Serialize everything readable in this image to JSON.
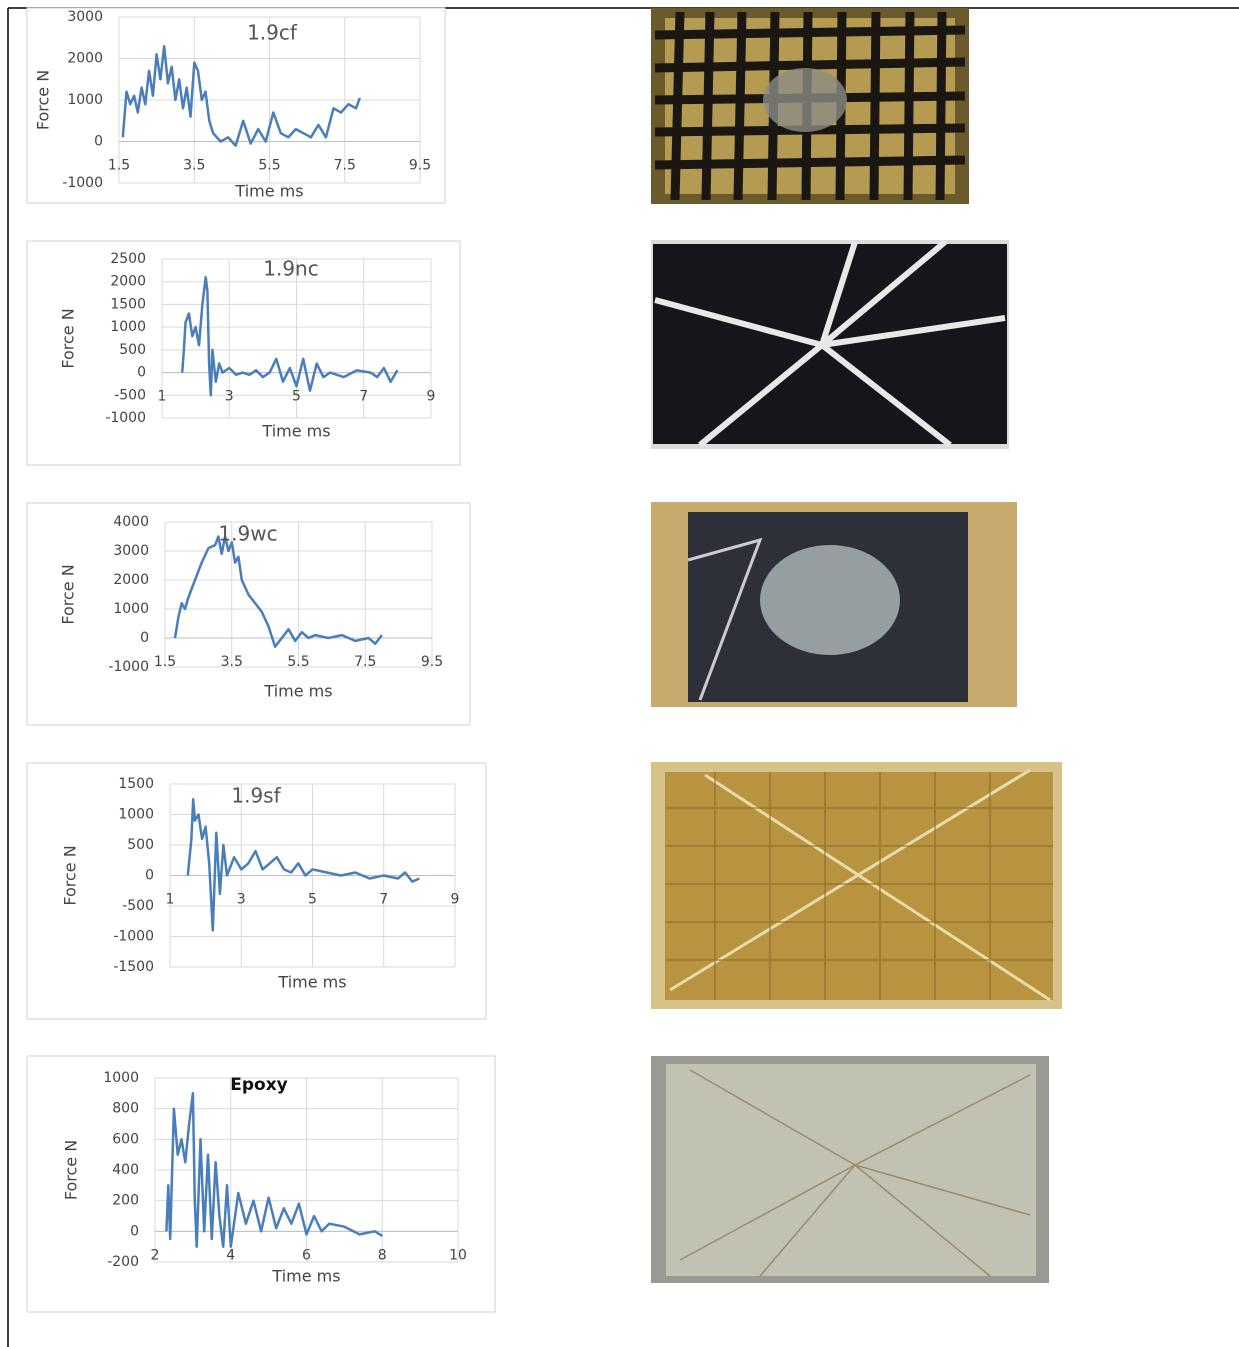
{
  "chart_data": [
    {
      "type": "line",
      "title": "1.9cf",
      "x_label": "Time ms",
      "y_label": "Force N",
      "color": "#4a7ebb",
      "x": [
        1.6,
        1.7,
        1.8,
        1.9,
        2.0,
        2.1,
        2.2,
        2.3,
        2.4,
        2.5,
        2.6,
        2.7,
        2.8,
        2.9,
        3.0,
        3.1,
        3.2,
        3.3,
        3.4,
        3.5,
        3.6,
        3.7,
        3.8,
        3.9,
        4.0,
        4.2,
        4.4,
        4.6,
        4.8,
        5.0,
        5.2,
        5.4,
        5.6,
        5.8,
        6.0,
        6.2,
        6.4,
        6.6,
        6.8,
        7.0,
        7.2,
        7.4,
        7.6,
        7.8,
        7.9
      ],
      "values": [
        100,
        1200,
        900,
        1100,
        700,
        1300,
        900,
        1700,
        1100,
        2100,
        1500,
        2300,
        1400,
        1800,
        1000,
        1500,
        800,
        1300,
        600,
        1900,
        1700,
        1000,
        1200,
        500,
        200,
        0,
        100,
        -100,
        500,
        -50,
        300,
        0,
        700,
        200,
        100,
        300,
        200,
        100,
        400,
        100,
        800,
        700,
        900,
        800,
        1050
      ],
      "xlim": [
        1.5,
        9.5
      ],
      "xticks": [
        1.5,
        3.5,
        5.5,
        7.5,
        9.5
      ],
      "ylim": [
        -1000,
        3000
      ],
      "yticks": [
        -1000,
        0,
        1000,
        2000,
        3000
      ],
      "grid": true
    },
    {
      "type": "line",
      "title": "1.9nc",
      "x_label": "Time ms",
      "y_label": "Force N",
      "color": "#4a7ebb",
      "x": [
        1.6,
        1.65,
        1.7,
        1.8,
        1.9,
        2.0,
        2.1,
        2.2,
        2.3,
        2.35,
        2.4,
        2.45,
        2.5,
        2.6,
        2.7,
        2.8,
        3.0,
        3.2,
        3.4,
        3.6,
        3.8,
        4.0,
        4.2,
        4.4,
        4.6,
        4.8,
        5.0,
        5.2,
        5.4,
        5.6,
        5.8,
        6.0,
        6.4,
        6.8,
        7.2,
        7.4,
        7.6,
        7.8,
        8.0
      ],
      "values": [
        0,
        500,
        1100,
        1300,
        800,
        1000,
        600,
        1500,
        2100,
        1800,
        200,
        -500,
        500,
        -200,
        200,
        0,
        100,
        -50,
        0,
        -50,
        50,
        -100,
        0,
        300,
        -200,
        100,
        -300,
        300,
        -400,
        200,
        -100,
        0,
        -100,
        50,
        0,
        -100,
        100,
        -200,
        50
      ],
      "xlim": [
        1,
        9
      ],
      "xticks": [
        1,
        3,
        5,
        7,
        9
      ],
      "ylim": [
        -1000,
        2500
      ],
      "yticks": [
        -1000,
        -500,
        0,
        500,
        1000,
        1500,
        2000,
        2500
      ],
      "grid": true
    },
    {
      "type": "line",
      "title": "1.9wc",
      "x_label": "Time ms",
      "y_label": "Force N",
      "color": "#4a7ebb",
      "x": [
        1.8,
        1.9,
        2.0,
        2.1,
        2.2,
        2.4,
        2.6,
        2.8,
        3.0,
        3.1,
        3.2,
        3.3,
        3.4,
        3.5,
        3.6,
        3.7,
        3.8,
        4.0,
        4.2,
        4.4,
        4.6,
        4.8,
        5.0,
        5.2,
        5.4,
        5.6,
        5.8,
        6.0,
        6.4,
        6.8,
        7.2,
        7.6,
        7.8,
        8.0
      ],
      "values": [
        0,
        700,
        1200,
        1000,
        1400,
        2000,
        2600,
        3100,
        3200,
        3500,
        2900,
        3500,
        3000,
        3300,
        2600,
        2800,
        2000,
        1500,
        1200,
        900,
        400,
        -300,
        0,
        300,
        -100,
        200,
        0,
        100,
        0,
        100,
        -100,
        0,
        -200,
        100
      ],
      "xlim": [
        1.5,
        9.5
      ],
      "xticks": [
        1.5,
        3.5,
        5.5,
        7.5,
        9.5
      ],
      "ylim": [
        -1000,
        4000
      ],
      "yticks": [
        -1000,
        0,
        1000,
        2000,
        3000,
        4000
      ],
      "grid": true
    },
    {
      "type": "line",
      "title": "1.9sf",
      "x_label": "Time ms",
      "y_label": "Force N",
      "color": "#4a7ebb",
      "x": [
        1.5,
        1.6,
        1.65,
        1.7,
        1.8,
        1.9,
        2.0,
        2.1,
        2.2,
        2.3,
        2.4,
        2.5,
        2.6,
        2.8,
        3.0,
        3.2,
        3.4,
        3.6,
        3.8,
        4.0,
        4.2,
        4.4,
        4.6,
        4.8,
        5.0,
        5.4,
        5.8,
        6.2,
        6.6,
        7.0,
        7.4,
        7.6,
        7.8,
        8.0
      ],
      "values": [
        0,
        600,
        1250,
        900,
        1000,
        600,
        800,
        200,
        -900,
        700,
        -300,
        500,
        0,
        300,
        100,
        200,
        400,
        100,
        200,
        300,
        100,
        50,
        200,
        0,
        100,
        50,
        0,
        50,
        -50,
        0,
        -50,
        50,
        -100,
        -50
      ],
      "xlim": [
        1,
        9
      ],
      "xticks": [
        1,
        3,
        5,
        7,
        9
      ],
      "ylim": [
        -1500,
        1500
      ],
      "yticks": [
        -1500,
        -1000,
        -500,
        0,
        500,
        1000,
        1500
      ],
      "grid": true
    },
    {
      "type": "line",
      "title": "Epoxy",
      "x_label": "Time ms",
      "y_label": "Force N",
      "color": "#4a7ebb",
      "x": [
        2.3,
        2.35,
        2.4,
        2.5,
        2.6,
        2.7,
        2.8,
        2.9,
        3.0,
        3.05,
        3.1,
        3.2,
        3.3,
        3.4,
        3.5,
        3.6,
        3.7,
        3.8,
        3.9,
        4.0,
        4.2,
        4.4,
        4.6,
        4.8,
        5.0,
        5.2,
        5.4,
        5.6,
        5.8,
        6.0,
        6.2,
        6.4,
        6.6,
        7.0,
        7.4,
        7.8,
        8.0
      ],
      "values": [
        0,
        300,
        -50,
        800,
        500,
        600,
        450,
        700,
        900,
        200,
        -100,
        600,
        0,
        500,
        -50,
        450,
        100,
        -100,
        300,
        -100,
        250,
        50,
        200,
        0,
        220,
        20,
        150,
        50,
        180,
        -20,
        100,
        0,
        50,
        30,
        -20,
        0,
        -30
      ],
      "xlim": [
        2,
        10
      ],
      "xticks": [
        2,
        4,
        6,
        8,
        10
      ],
      "ylim": [
        -200,
        1000
      ],
      "yticks": [
        -200,
        0,
        200,
        400,
        600,
        800,
        1000
      ],
      "grid": true
    }
  ]
}
